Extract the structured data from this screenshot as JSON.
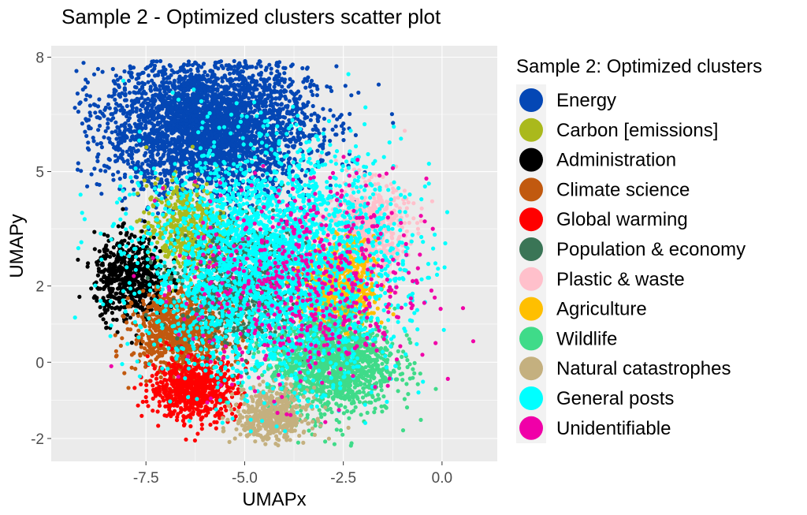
{
  "chart_data": {
    "type": "scatter",
    "title": "Sample 2 - Optimized clusters scatter plot",
    "xlabel": "UMAPx",
    "ylabel": "UMAPy",
    "xlim": [
      -9.9,
      1.4
    ],
    "ylim": [
      -2.6,
      8.3
    ],
    "x_ticks": [
      -7.5,
      -5.0,
      -2.5,
      0.0
    ],
    "x_tick_labels": [
      "-7.5",
      "-5.0",
      "-2.5",
      "0.0"
    ],
    "y_ticks": [
      -2,
      0,
      2,
      5,
      8
    ],
    "y_tick_labels": [
      "-2",
      "0",
      "2",
      "5",
      "8"
    ],
    "grid": true,
    "legend_position": "right",
    "legend_title": "Sample 2: Optimized clusters",
    "series": [
      {
        "name": "Energy",
        "color": "#0447B5",
        "center": [
          -5.9,
          6.2
        ],
        "spread": [
          1.3,
          0.9
        ],
        "n": 3600
      },
      {
        "name": "Carbon [emissions]",
        "color": "#AAB91C",
        "center": [
          -6.5,
          3.5
        ],
        "spread": [
          0.5,
          0.6
        ],
        "n": 500
      },
      {
        "name": "Administration",
        "color": "#000000",
        "center": [
          -7.9,
          2.2
        ],
        "spread": [
          0.45,
          0.55
        ],
        "n": 600
      },
      {
        "name": "Climate science",
        "color": "#C1590F",
        "center": [
          -6.6,
          0.8
        ],
        "spread": [
          0.6,
          0.55
        ],
        "n": 900
      },
      {
        "name": "Global warming",
        "color": "#FF0000",
        "center": [
          -6.3,
          -0.7
        ],
        "spread": [
          0.55,
          0.4
        ],
        "n": 700
      },
      {
        "name": "Population & economy",
        "color": "#3A7556",
        "center": [
          -5.0,
          2.0
        ],
        "spread": [
          0.8,
          0.8
        ],
        "n": 900
      },
      {
        "name": "Plastic & waste",
        "color": "#FFC0CB",
        "center": [
          -1.9,
          3.5
        ],
        "spread": [
          0.5,
          0.6
        ],
        "n": 600
      },
      {
        "name": "Agriculture",
        "color": "#FFBF00",
        "center": [
          -2.6,
          2.0
        ],
        "spread": [
          0.45,
          0.55
        ],
        "n": 700
      },
      {
        "name": "Wildlife",
        "color": "#3FDB89",
        "center": [
          -2.8,
          0.0
        ],
        "spread": [
          0.8,
          0.7
        ],
        "n": 1400
      },
      {
        "name": "Natural catastrophes",
        "color": "#C4B07F",
        "center": [
          -4.3,
          -1.4
        ],
        "spread": [
          0.45,
          0.35
        ],
        "n": 500
      },
      {
        "name": "General posts",
        "color": "#00FFFF",
        "center": [
          -4.3,
          2.6
        ],
        "spread": [
          1.6,
          1.5
        ],
        "n": 3000
      },
      {
        "name": "Unidentifiable",
        "color": "#F000A8",
        "center": [
          -3.4,
          2.0
        ],
        "spread": [
          1.5,
          1.4
        ],
        "n": 600
      }
    ]
  }
}
